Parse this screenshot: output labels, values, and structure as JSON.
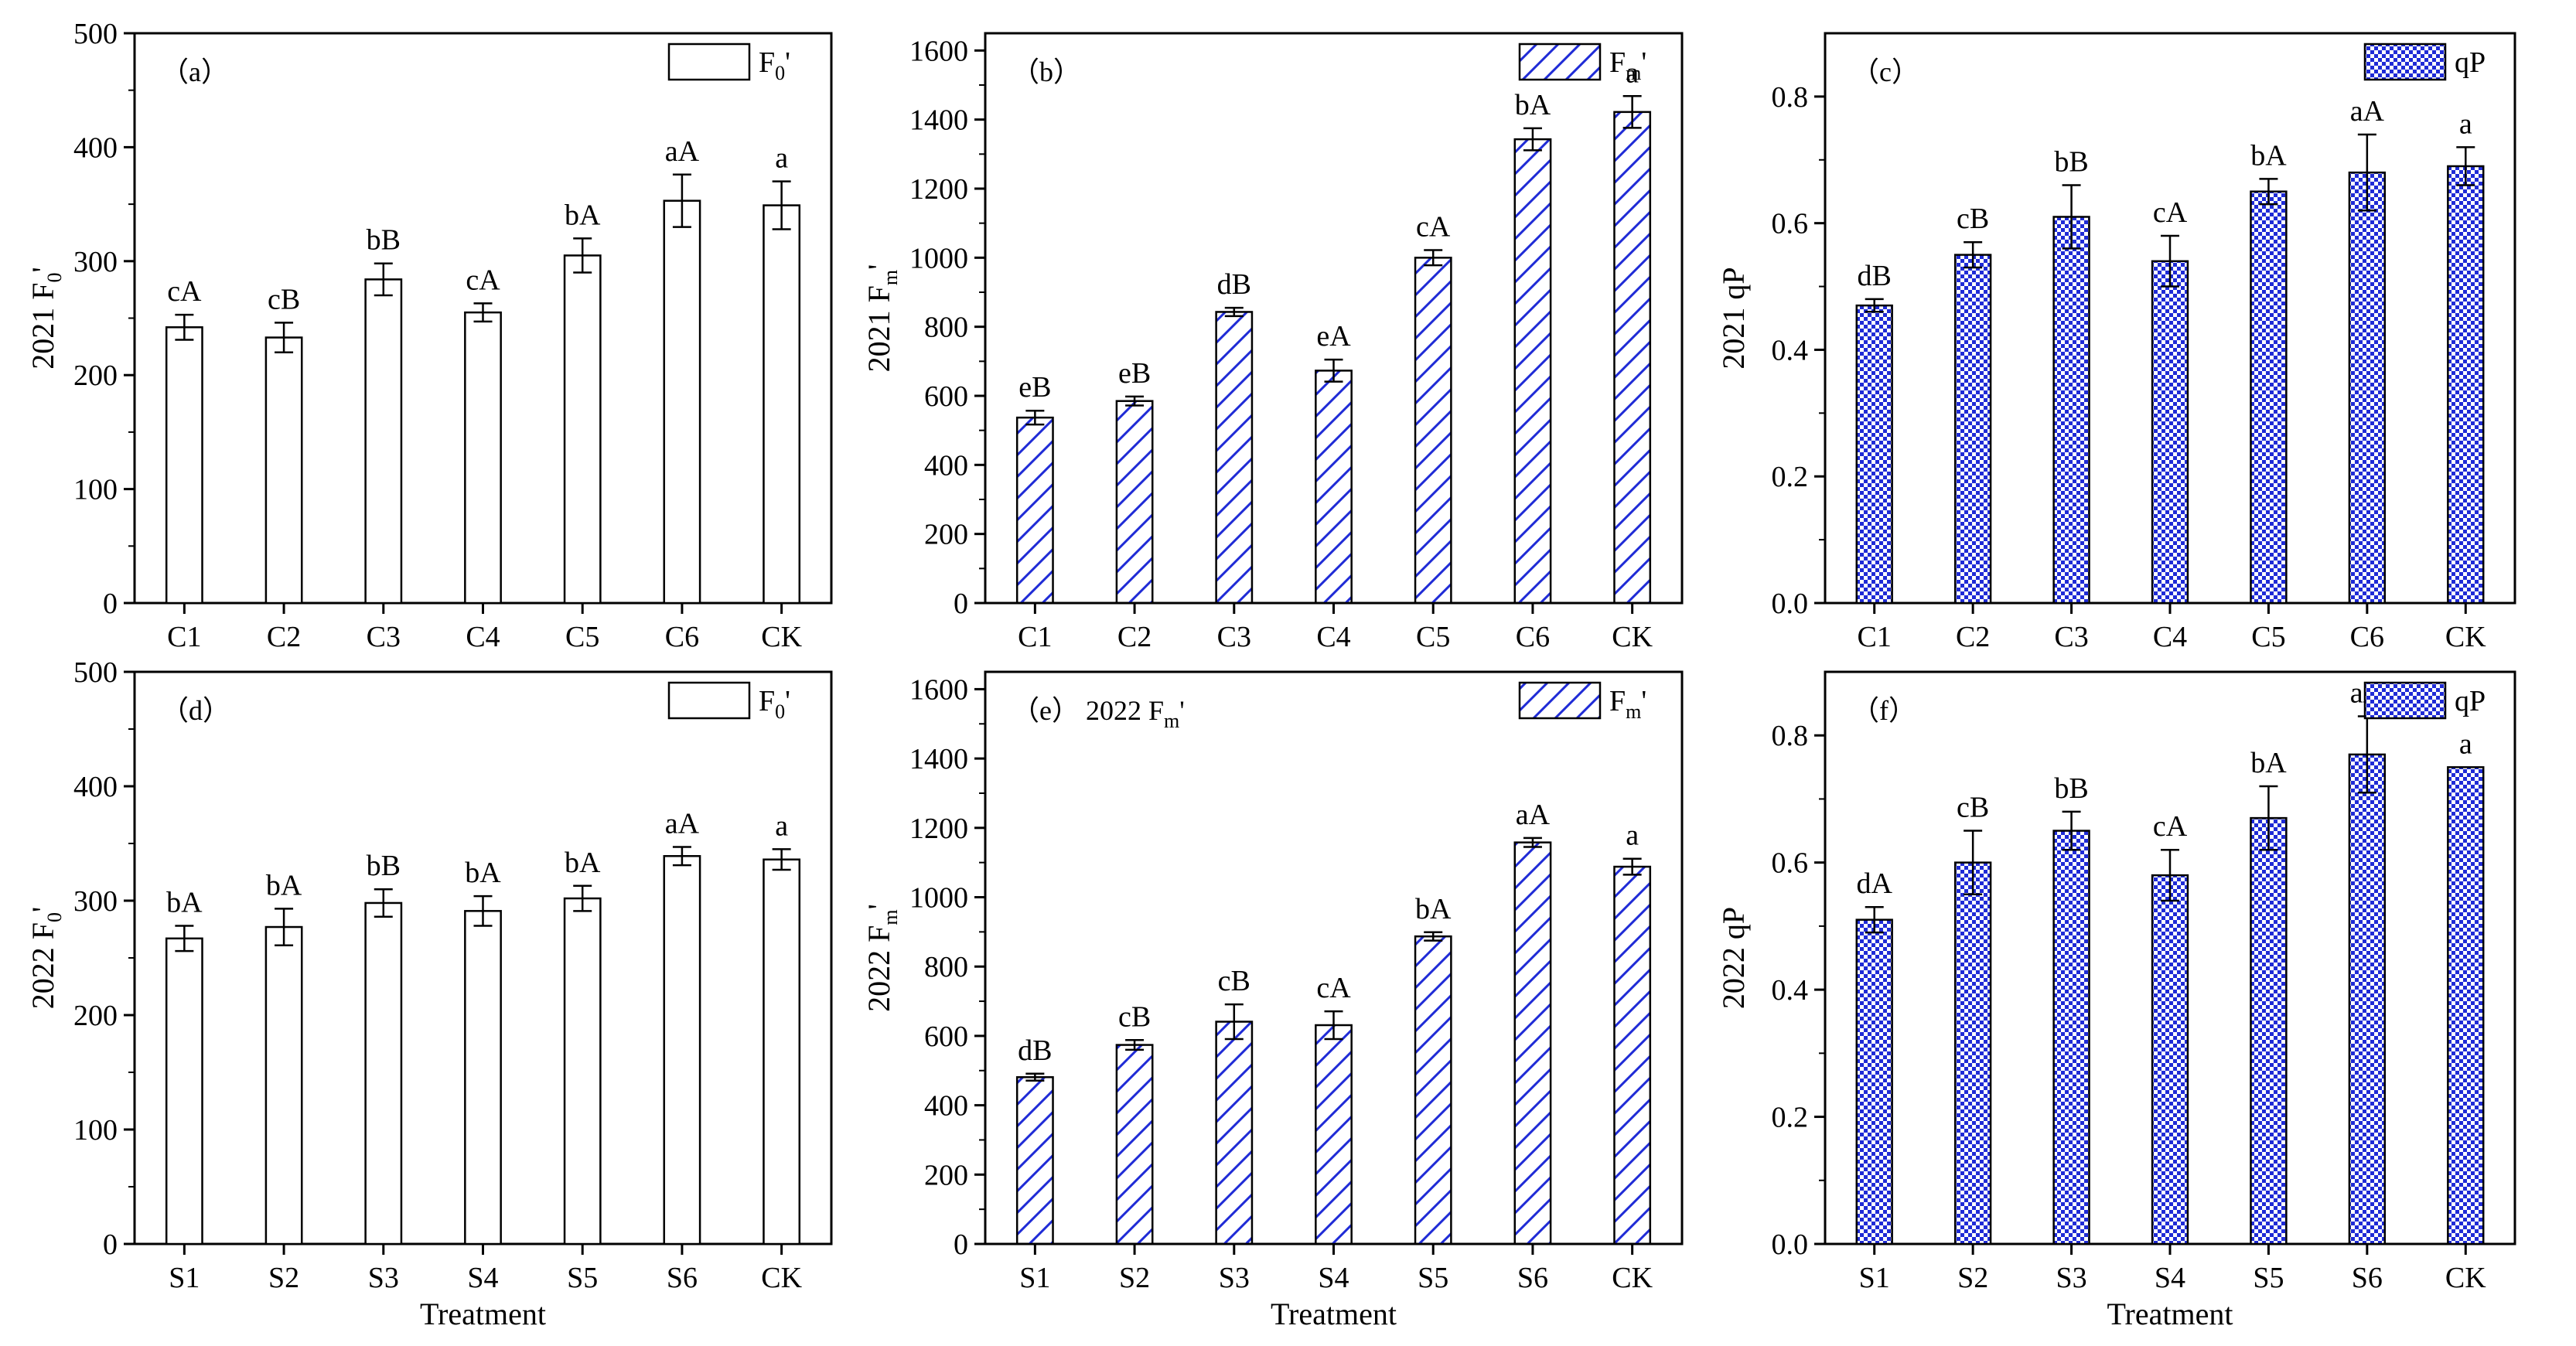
{
  "figure": {
    "background": "#ffffff",
    "bar_accent": "#1f2bd6",
    "axis_color": "#000000"
  },
  "chart_data": [
    {
      "id": "a",
      "type": "bar",
      "panel_label": "（a）",
      "ylabel": "2021 F0'",
      "ylabel_main": "2021 F",
      "ylabel_sub": "0",
      "ylabel_suffix": "'",
      "xlabel": "",
      "legend": {
        "text": "F0'",
        "main": "F",
        "sub": "0",
        "suffix": "'",
        "placement": "top-right",
        "pattern": "open"
      },
      "ylim": [
        0,
        500
      ],
      "yticks": [
        0,
        100,
        200,
        300,
        400,
        500
      ],
      "ytick_labels": [
        "0",
        "100",
        "200",
        "300",
        "400",
        "500"
      ],
      "categories": [
        "C1",
        "C2",
        "C3",
        "C4",
        "C5",
        "C6",
        "CK"
      ],
      "values": [
        242,
        233,
        284,
        255,
        305,
        353,
        349
      ],
      "errors": [
        11,
        13,
        14,
        8,
        15,
        23,
        21
      ],
      "significance": [
        "cA",
        "cB",
        "bB",
        "cA",
        "bA",
        "aA",
        "a"
      ]
    },
    {
      "id": "b",
      "type": "bar",
      "panel_label": "（b）",
      "ylabel": "2021 Fm'",
      "ylabel_main": "2021 F",
      "ylabel_sub": "m",
      "ylabel_suffix": "'",
      "xlabel": "",
      "legend": {
        "text": "Fm'",
        "main": "F",
        "sub": "m",
        "suffix": "'",
        "placement": "top-right",
        "pattern": "hatch"
      },
      "ylim": [
        0,
        1650
      ],
      "yticks": [
        0,
        200,
        400,
        600,
        800,
        1000,
        1200,
        1400,
        1600
      ],
      "ytick_labels": [
        "0",
        "200",
        "400",
        "600",
        "800",
        "1000",
        "1200",
        "1400",
        "1600"
      ],
      "categories": [
        "C1",
        "C2",
        "C3",
        "C4",
        "C5",
        "C6",
        "CK"
      ],
      "values": [
        537,
        585,
        843,
        673,
        1000,
        1343,
        1422
      ],
      "errors": [
        20,
        13,
        12,
        32,
        22,
        32,
        46
      ],
      "significance": [
        "eB",
        "eB",
        "dB",
        "eA",
        "cA",
        "bA",
        "a"
      ]
    },
    {
      "id": "c",
      "type": "bar",
      "panel_label": "（c）",
      "ylabel": "2021 qP",
      "ylabel_main": "2021 qP",
      "ylabel_sub": "",
      "ylabel_suffix": "",
      "xlabel": "",
      "legend": {
        "text": "qP",
        "main": "qP",
        "sub": "",
        "suffix": "",
        "placement": "top-right",
        "pattern": "check"
      },
      "ylim": [
        0,
        0.9
      ],
      "yticks": [
        0,
        0.2,
        0.4,
        0.6,
        0.8
      ],
      "ytick_labels": [
        "0.0",
        "0.2",
        "0.4",
        "0.6",
        "0.8"
      ],
      "categories": [
        "C1",
        "C2",
        "C3",
        "C4",
        "C5",
        "C6",
        "CK"
      ],
      "values": [
        0.47,
        0.55,
        0.61,
        0.54,
        0.65,
        0.68,
        0.69
      ],
      "errors": [
        0.01,
        0.02,
        0.05,
        0.04,
        0.02,
        0.06,
        0.03
      ],
      "significance": [
        "dB",
        "cB",
        "bB",
        "cA",
        "bA",
        "aA",
        "a"
      ]
    },
    {
      "id": "d",
      "type": "bar",
      "panel_label": "（d）",
      "ylabel": "2022 F0'",
      "ylabel_main": "2022 F",
      "ylabel_sub": "0",
      "ylabel_suffix": "'",
      "xlabel": "Treatment",
      "legend": {
        "text": "F0'",
        "main": "F",
        "sub": "0",
        "suffix": "'",
        "placement": "top-right",
        "pattern": "open"
      },
      "ylim": [
        0,
        500
      ],
      "yticks": [
        0,
        100,
        200,
        300,
        400,
        500
      ],
      "ytick_labels": [
        "0",
        "100",
        "200",
        "300",
        "400",
        "500"
      ],
      "categories": [
        "S1",
        "S2",
        "S3",
        "S4",
        "S5",
        "S6",
        "CK"
      ],
      "values": [
        267,
        277,
        298,
        291,
        302,
        339,
        336
      ],
      "errors": [
        11,
        16,
        12,
        13,
        11,
        8,
        9
      ],
      "significance": [
        "bA",
        "bA",
        "bB",
        "bA",
        "bA",
        "aA",
        "a"
      ]
    },
    {
      "id": "e",
      "type": "bar",
      "panel_label": "（e）",
      "title": "2022 Fm'",
      "title_main": "2022 F",
      "title_sub": "m",
      "title_suffix": "'",
      "ylabel": "2022 Fm'",
      "ylabel_main": "2022 F",
      "ylabel_sub": "m",
      "ylabel_suffix": "'",
      "xlabel": "Treatment",
      "legend": {
        "text": "Fm'",
        "main": "F",
        "sub": "m",
        "suffix": "'",
        "placement": "top-right",
        "pattern": "hatch"
      },
      "ylim": [
        0,
        1650
      ],
      "yticks": [
        0,
        200,
        400,
        600,
        800,
        1000,
        1200,
        1400,
        1600
      ],
      "ytick_labels": [
        "0",
        "200",
        "400",
        "600",
        "800",
        "1000",
        "1200",
        "1400",
        "1600"
      ],
      "categories": [
        "S1",
        "S2",
        "S3",
        "S4",
        "S5",
        "S6",
        "CK"
      ],
      "values": [
        481,
        574,
        641,
        631,
        887,
        1158,
        1088
      ],
      "errors": [
        10,
        14,
        50,
        40,
        12,
        13,
        23
      ],
      "significance": [
        "dB",
        "cB",
        "cB",
        "cA",
        "bA",
        "aA",
        "a"
      ]
    },
    {
      "id": "f",
      "type": "bar",
      "panel_label": "（f）",
      "ylabel": "2022 qP",
      "ylabel_main": "2022 qP",
      "ylabel_sub": "",
      "ylabel_suffix": "",
      "xlabel": "Treatment",
      "legend": {
        "text": "qP",
        "main": "qP",
        "sub": "",
        "suffix": "",
        "placement": "top-right",
        "pattern": "check"
      },
      "ylim": [
        0,
        0.9
      ],
      "yticks": [
        0,
        0.2,
        0.4,
        0.6,
        0.8
      ],
      "ytick_labels": [
        "0.0",
        "0.2",
        "0.4",
        "0.6",
        "0.8"
      ],
      "categories": [
        "S1",
        "S2",
        "S3",
        "S4",
        "S5",
        "S6",
        "CK"
      ],
      "values": [
        0.51,
        0.6,
        0.65,
        0.58,
        0.67,
        0.77,
        0.75
      ],
      "errors": [
        0.02,
        0.05,
        0.03,
        0.04,
        0.05,
        0.06,
        0.0
      ],
      "significance": [
        "dA",
        "cB",
        "bB",
        "cA",
        "bA",
        "aA",
        "a"
      ]
    }
  ]
}
